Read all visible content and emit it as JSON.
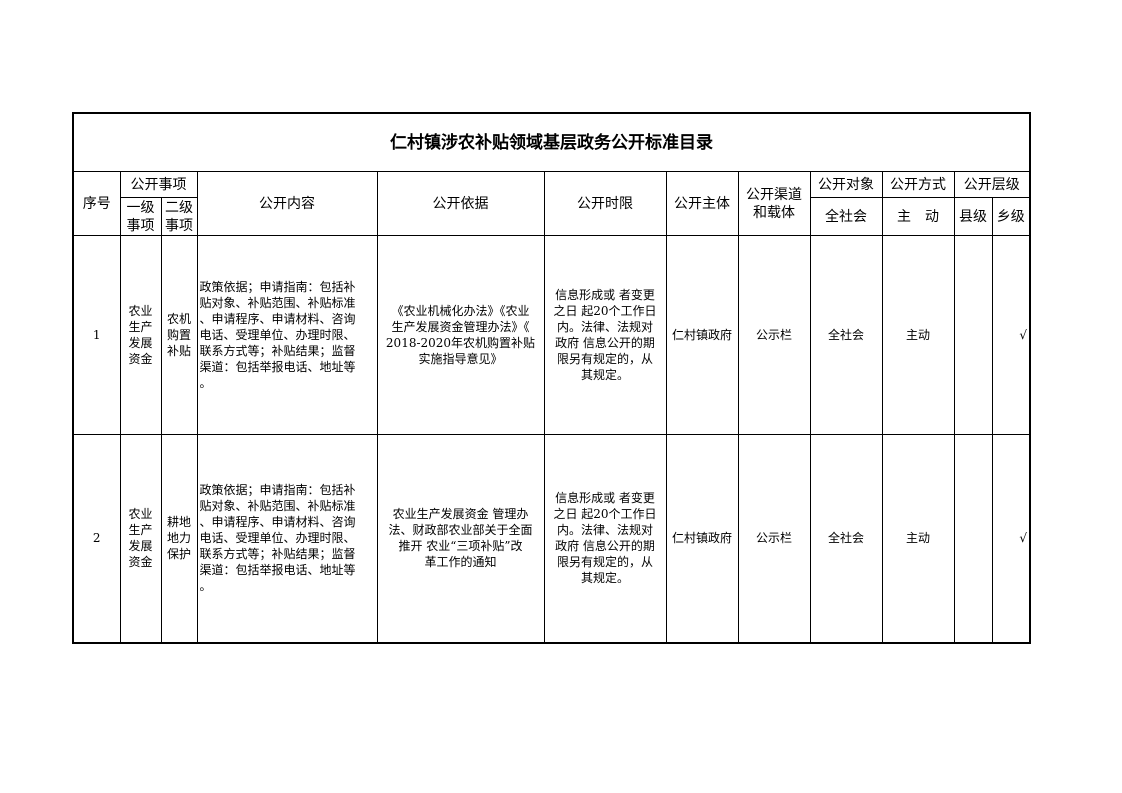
{
  "title": "仁村镇涉农补贴领域基层政务公开标准目录",
  "headers": {
    "seq": "序号",
    "items": "公开事项",
    "level1": "一级\n事项",
    "level2": "二级\n事项",
    "content": "公开内容",
    "basis": "公开依据",
    "time_limit": "公开时限",
    "subject": "公开主体",
    "channel": "公开渠道\n和载体",
    "target": "公开对象",
    "target_sub": "全社会",
    "method": "公开方式",
    "method_sub": "主　动",
    "level": "公开层级",
    "county": "县级",
    "township": "乡级"
  },
  "rows": [
    {
      "seq": "1",
      "level1": "农业\n生产\n发展\n资金",
      "level2": "农机\n购置\n补贴",
      "content": "政策依据；申请指南：包括补\n贴对象、补贴范围、补贴标准\n、申请程序、申请材料、咨询\n电话、受理单位、办理时限、\n联系方式等；补贴结果；监督\n渠道：包括举报电话、地址等\n。",
      "basis": "《农业机械化办法》《农业\n生产发展资金管理办法》《\n2018-2020年农机购置补贴\n实施指导意见》",
      "time_limit": "信息形成或 者变更\n之日 起20个工作日\n内。法律、法规对\n政府 信息公开的期\n限另有规定的，从\n其规定。",
      "subject": "仁村镇政府",
      "channel": "公示栏",
      "target": "全社会",
      "method": "主动",
      "county": "",
      "township": "√"
    },
    {
      "seq": "2",
      "level1": "农业\n生产\n发展\n资金",
      "level2": "耕地\n地力\n保护",
      "content": "政策依据；申请指南：包括补\n贴对象、补贴范围、补贴标准\n、申请程序、申请材料、咨询\n电话、受理单位、办理时限、\n联系方式等；补贴结果；监督\n渠道：包括举报电话、地址等\n。",
      "basis": "农业生产发展资金 管理办\n法、财政部农业部关于全面\n推开 农业“三项补贴”改\n革工作的通知",
      "time_limit": "信息形成或 者变更\n之日 起20个工作日\n内。法律、法规对\n政府 信息公开的期\n限另有规定的，从\n其规定。",
      "subject": "仁村镇政府",
      "channel": "公示栏",
      "target": "全社会",
      "method": "主动",
      "county": "",
      "township": "√"
    }
  ]
}
